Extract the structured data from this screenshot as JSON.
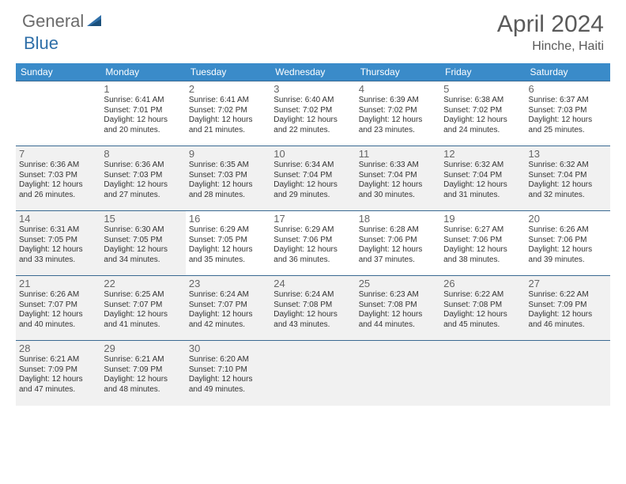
{
  "logo": {
    "general": "General",
    "blue": "Blue"
  },
  "title": "April 2024",
  "location": "Hinche, Haiti",
  "colors": {
    "header_bg": "#3a8bc9",
    "header_text": "#ffffff",
    "border": "#3a6a92",
    "shaded": "#f1f1f1",
    "daynum": "#666666",
    "text": "#333333",
    "logo_gray": "#6b6b6b",
    "logo_blue": "#2f6fa8"
  },
  "weekdays": [
    "Sunday",
    "Monday",
    "Tuesday",
    "Wednesday",
    "Thursday",
    "Friday",
    "Saturday"
  ],
  "weeks": [
    [
      {
        "day": "",
        "sunrise": "",
        "sunset": "",
        "daylight": "",
        "shaded": false
      },
      {
        "day": "1",
        "sunrise": "Sunrise: 6:41 AM",
        "sunset": "Sunset: 7:01 PM",
        "daylight": "Daylight: 12 hours and 20 minutes.",
        "shaded": false
      },
      {
        "day": "2",
        "sunrise": "Sunrise: 6:41 AM",
        "sunset": "Sunset: 7:02 PM",
        "daylight": "Daylight: 12 hours and 21 minutes.",
        "shaded": false
      },
      {
        "day": "3",
        "sunrise": "Sunrise: 6:40 AM",
        "sunset": "Sunset: 7:02 PM",
        "daylight": "Daylight: 12 hours and 22 minutes.",
        "shaded": false
      },
      {
        "day": "4",
        "sunrise": "Sunrise: 6:39 AM",
        "sunset": "Sunset: 7:02 PM",
        "daylight": "Daylight: 12 hours and 23 minutes.",
        "shaded": false
      },
      {
        "day": "5",
        "sunrise": "Sunrise: 6:38 AM",
        "sunset": "Sunset: 7:02 PM",
        "daylight": "Daylight: 12 hours and 24 minutes.",
        "shaded": false
      },
      {
        "day": "6",
        "sunrise": "Sunrise: 6:37 AM",
        "sunset": "Sunset: 7:03 PM",
        "daylight": "Daylight: 12 hours and 25 minutes.",
        "shaded": false
      }
    ],
    [
      {
        "day": "7",
        "sunrise": "Sunrise: 6:36 AM",
        "sunset": "Sunset: 7:03 PM",
        "daylight": "Daylight: 12 hours and 26 minutes.",
        "shaded": true
      },
      {
        "day": "8",
        "sunrise": "Sunrise: 6:36 AM",
        "sunset": "Sunset: 7:03 PM",
        "daylight": "Daylight: 12 hours and 27 minutes.",
        "shaded": true
      },
      {
        "day": "9",
        "sunrise": "Sunrise: 6:35 AM",
        "sunset": "Sunset: 7:03 PM",
        "daylight": "Daylight: 12 hours and 28 minutes.",
        "shaded": true
      },
      {
        "day": "10",
        "sunrise": "Sunrise: 6:34 AM",
        "sunset": "Sunset: 7:04 PM",
        "daylight": "Daylight: 12 hours and 29 minutes.",
        "shaded": true
      },
      {
        "day": "11",
        "sunrise": "Sunrise: 6:33 AM",
        "sunset": "Sunset: 7:04 PM",
        "daylight": "Daylight: 12 hours and 30 minutes.",
        "shaded": true
      },
      {
        "day": "12",
        "sunrise": "Sunrise: 6:32 AM",
        "sunset": "Sunset: 7:04 PM",
        "daylight": "Daylight: 12 hours and 31 minutes.",
        "shaded": true
      },
      {
        "day": "13",
        "sunrise": "Sunrise: 6:32 AM",
        "sunset": "Sunset: 7:04 PM",
        "daylight": "Daylight: 12 hours and 32 minutes.",
        "shaded": true
      }
    ],
    [
      {
        "day": "14",
        "sunrise": "Sunrise: 6:31 AM",
        "sunset": "Sunset: 7:05 PM",
        "daylight": "Daylight: 12 hours and 33 minutes.",
        "shaded": true
      },
      {
        "day": "15",
        "sunrise": "Sunrise: 6:30 AM",
        "sunset": "Sunset: 7:05 PM",
        "daylight": "Daylight: 12 hours and 34 minutes.",
        "shaded": true
      },
      {
        "day": "16",
        "sunrise": "Sunrise: 6:29 AM",
        "sunset": "Sunset: 7:05 PM",
        "daylight": "Daylight: 12 hours and 35 minutes.",
        "shaded": false
      },
      {
        "day": "17",
        "sunrise": "Sunrise: 6:29 AM",
        "sunset": "Sunset: 7:06 PM",
        "daylight": "Daylight: 12 hours and 36 minutes.",
        "shaded": false
      },
      {
        "day": "18",
        "sunrise": "Sunrise: 6:28 AM",
        "sunset": "Sunset: 7:06 PM",
        "daylight": "Daylight: 12 hours and 37 minutes.",
        "shaded": false
      },
      {
        "day": "19",
        "sunrise": "Sunrise: 6:27 AM",
        "sunset": "Sunset: 7:06 PM",
        "daylight": "Daylight: 12 hours and 38 minutes.",
        "shaded": false
      },
      {
        "day": "20",
        "sunrise": "Sunrise: 6:26 AM",
        "sunset": "Sunset: 7:06 PM",
        "daylight": "Daylight: 12 hours and 39 minutes.",
        "shaded": false
      }
    ],
    [
      {
        "day": "21",
        "sunrise": "Sunrise: 6:26 AM",
        "sunset": "Sunset: 7:07 PM",
        "daylight": "Daylight: 12 hours and 40 minutes.",
        "shaded": true
      },
      {
        "day": "22",
        "sunrise": "Sunrise: 6:25 AM",
        "sunset": "Sunset: 7:07 PM",
        "daylight": "Daylight: 12 hours and 41 minutes.",
        "shaded": true
      },
      {
        "day": "23",
        "sunrise": "Sunrise: 6:24 AM",
        "sunset": "Sunset: 7:07 PM",
        "daylight": "Daylight: 12 hours and 42 minutes.",
        "shaded": true
      },
      {
        "day": "24",
        "sunrise": "Sunrise: 6:24 AM",
        "sunset": "Sunset: 7:08 PM",
        "daylight": "Daylight: 12 hours and 43 minutes.",
        "shaded": true
      },
      {
        "day": "25",
        "sunrise": "Sunrise: 6:23 AM",
        "sunset": "Sunset: 7:08 PM",
        "daylight": "Daylight: 12 hours and 44 minutes.",
        "shaded": true
      },
      {
        "day": "26",
        "sunrise": "Sunrise: 6:22 AM",
        "sunset": "Sunset: 7:08 PM",
        "daylight": "Daylight: 12 hours and 45 minutes.",
        "shaded": true
      },
      {
        "day": "27",
        "sunrise": "Sunrise: 6:22 AM",
        "sunset": "Sunset: 7:09 PM",
        "daylight": "Daylight: 12 hours and 46 minutes.",
        "shaded": true
      }
    ],
    [
      {
        "day": "28",
        "sunrise": "Sunrise: 6:21 AM",
        "sunset": "Sunset: 7:09 PM",
        "daylight": "Daylight: 12 hours and 47 minutes.",
        "shaded": true
      },
      {
        "day": "29",
        "sunrise": "Sunrise: 6:21 AM",
        "sunset": "Sunset: 7:09 PM",
        "daylight": "Daylight: 12 hours and 48 minutes.",
        "shaded": true
      },
      {
        "day": "30",
        "sunrise": "Sunrise: 6:20 AM",
        "sunset": "Sunset: 7:10 PM",
        "daylight": "Daylight: 12 hours and 49 minutes.",
        "shaded": true
      },
      {
        "day": "",
        "sunrise": "",
        "sunset": "",
        "daylight": "",
        "shaded": true
      },
      {
        "day": "",
        "sunrise": "",
        "sunset": "",
        "daylight": "",
        "shaded": true
      },
      {
        "day": "",
        "sunrise": "",
        "sunset": "",
        "daylight": "",
        "shaded": true
      },
      {
        "day": "",
        "sunrise": "",
        "sunset": "",
        "daylight": "",
        "shaded": true
      }
    ]
  ]
}
